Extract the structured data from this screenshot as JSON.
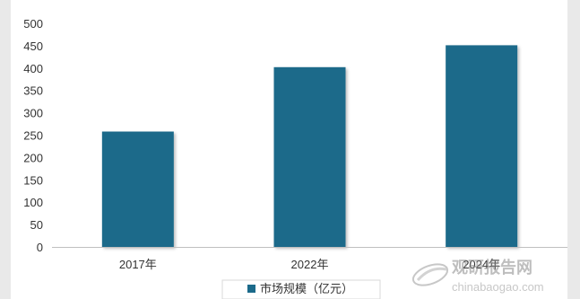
{
  "chart_data": {
    "type": "bar",
    "categories": [
      "2017年",
      "2022年",
      "2024年"
    ],
    "series": [
      {
        "name": "市场规模（亿元）",
        "values": [
          258,
          402,
          451
        ]
      }
    ],
    "ylim": [
      0,
      500
    ],
    "yticks": [
      0,
      50,
      100,
      150,
      200,
      250,
      300,
      350,
      400,
      450,
      500
    ],
    "grid": false,
    "legend_position": "bottom-center",
    "bar_color": "#1b6a8a",
    "title": "",
    "xlabel": "",
    "ylabel": ""
  },
  "watermark": {
    "brand": "观研报告网",
    "url": "chinabaogao.com"
  }
}
